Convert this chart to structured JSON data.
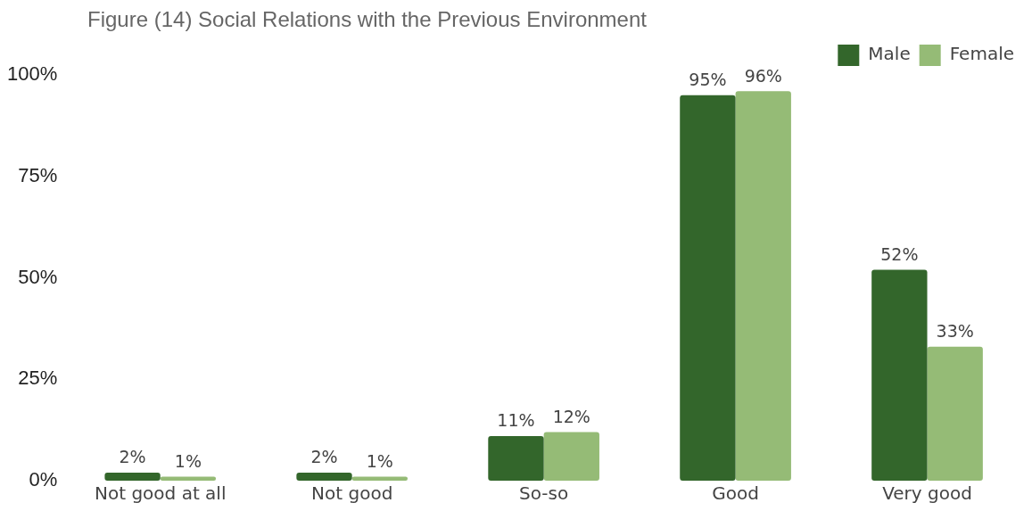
{
  "chart_data": {
    "type": "bar",
    "title": "Figure (14) Social Relations with the Previous Environment",
    "categories": [
      "Not good at all",
      "Not good",
      "So-so",
      "Good",
      "Very good"
    ],
    "series": [
      {
        "name": "Male",
        "color": "#33662b",
        "values": [
          2,
          2,
          11,
          95,
          52
        ],
        "value_labels": [
          "2%",
          "2%",
          "11%",
          "95%",
          "52%"
        ]
      },
      {
        "name": "Female",
        "color": "#95bb76",
        "values": [
          1,
          1,
          12,
          96,
          33
        ],
        "value_labels": [
          "1%",
          "1%",
          "12%",
          "96%",
          "33%"
        ]
      }
    ],
    "ylim": [
      0,
      100
    ],
    "yticks": [
      {
        "value": 0,
        "label": "0%"
      },
      {
        "value": 25,
        "label": "25%"
      },
      {
        "value": 50,
        "label": "50%"
      },
      {
        "value": 75,
        "label": "75%"
      },
      {
        "value": 100,
        "label": "100%"
      }
    ],
    "grid": false,
    "legend": "top right"
  }
}
